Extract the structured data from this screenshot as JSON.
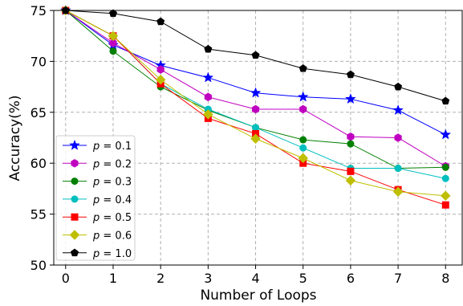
{
  "chart_data": {
    "type": "line",
    "xlabel": "Number of Loops",
    "ylabel": "Accuracy(%)",
    "x": [
      0,
      1,
      2,
      3,
      4,
      5,
      6,
      7,
      8
    ],
    "xlim": [
      -0.25,
      8.35
    ],
    "ylim": [
      50,
      75
    ],
    "xticks": [
      "0",
      "1",
      "2",
      "3",
      "4",
      "5",
      "6",
      "7",
      "8"
    ],
    "yticks": [
      "50",
      "55",
      "60",
      "65",
      "70",
      "75"
    ],
    "grid": true,
    "legend_position": "lower-left",
    "series": [
      {
        "name": "p = 0.1",
        "color": "#0000ff",
        "marker": "star",
        "values": [
          75.0,
          71.6,
          69.6,
          68.4,
          66.9,
          66.5,
          66.3,
          65.2,
          62.8
        ]
      },
      {
        "name": "p = 0.2",
        "color": "#c000c0",
        "marker": "hexagon",
        "values": [
          75.0,
          71.8,
          69.2,
          66.5,
          65.3,
          65.3,
          62.6,
          62.5,
          59.7
        ]
      },
      {
        "name": "p = 0.3",
        "color": "#008000",
        "marker": "circle",
        "values": [
          75.0,
          71.0,
          67.5,
          65.2,
          63.5,
          62.3,
          61.9,
          59.5,
          59.6
        ]
      },
      {
        "name": "p = 0.4",
        "color": "#00bfbf",
        "marker": "circle",
        "values": [
          75.0,
          72.5,
          67.8,
          65.3,
          63.5,
          61.5,
          59.5,
          59.5,
          58.5
        ]
      },
      {
        "name": "p = 0.5",
        "color": "#ff0000",
        "marker": "square",
        "values": [
          75.0,
          72.5,
          67.8,
          64.4,
          62.9,
          60.0,
          59.2,
          57.4,
          55.9
        ]
      },
      {
        "name": "p = 0.6",
        "color": "#bfbf00",
        "marker": "diamond",
        "values": [
          75.0,
          72.5,
          68.2,
          64.8,
          62.4,
          60.5,
          58.3,
          57.2,
          56.8
        ]
      },
      {
        "name": "p = 1.0",
        "color": "#000000",
        "marker": "pentagon",
        "values": [
          75.0,
          74.7,
          73.9,
          71.2,
          70.6,
          69.3,
          68.7,
          67.5,
          66.1
        ]
      }
    ]
  }
}
